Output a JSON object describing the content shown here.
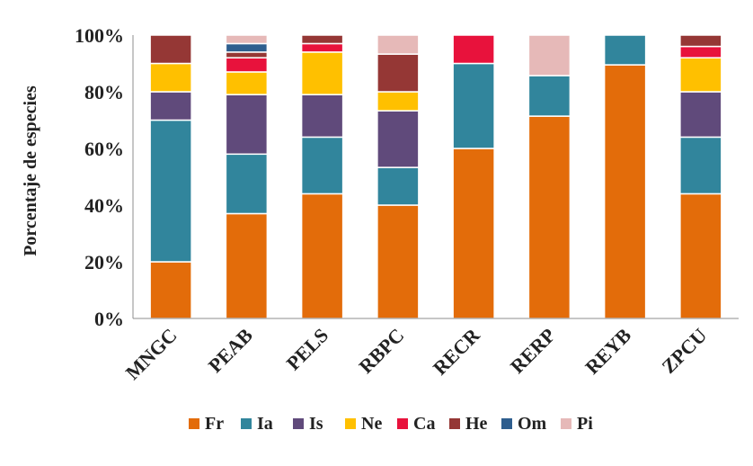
{
  "chart_data": {
    "type": "bar",
    "stacked": true,
    "title": "",
    "xlabel": "",
    "ylabel": "Porcentaje de especies",
    "ylim": [
      0,
      100
    ],
    "y_tick_labels": [
      "0%",
      "20%",
      "40%",
      "60%",
      "80%",
      "100%"
    ],
    "y_tick_values": [
      0,
      20,
      40,
      60,
      80,
      100
    ],
    "grid": false,
    "legend_position": "bottom",
    "categories": [
      "MNGC",
      "PEAB",
      "PELS",
      "RBPC",
      "RECR",
      "RERP",
      "REYB",
      "ZPCU"
    ],
    "series": [
      {
        "name": "Fr",
        "color": "#E36C0A",
        "values": [
          20,
          37,
          44,
          40,
          60,
          71.4,
          89.5,
          44
        ]
      },
      {
        "name": "Ia",
        "color": "#31859C",
        "values": [
          50,
          21,
          20,
          13.3,
          30,
          14.3,
          10.5,
          20
        ]
      },
      {
        "name": "Is",
        "color": "#604A7B",
        "values": [
          10,
          21,
          15,
          20,
          0,
          0,
          0,
          16
        ]
      },
      {
        "name": "Ne",
        "color": "#FFC000",
        "values": [
          10,
          8,
          15,
          6.7,
          0,
          0,
          0,
          12
        ]
      },
      {
        "name": "Ca",
        "color": "#E8123C",
        "values": [
          0,
          5,
          3,
          0,
          10,
          0,
          0,
          4
        ]
      },
      {
        "name": "He",
        "color": "#953735",
        "values": [
          10,
          2,
          3,
          13.3,
          0,
          0,
          0,
          4
        ]
      },
      {
        "name": "Om",
        "color": "#2E5E8E",
        "values": [
          0,
          3,
          0,
          0,
          0,
          0,
          0,
          0
        ]
      },
      {
        "name": "Pi",
        "color": "#E6B9B8",
        "values": [
          0,
          3,
          0,
          6.7,
          0,
          14.3,
          0,
          0
        ]
      }
    ]
  }
}
